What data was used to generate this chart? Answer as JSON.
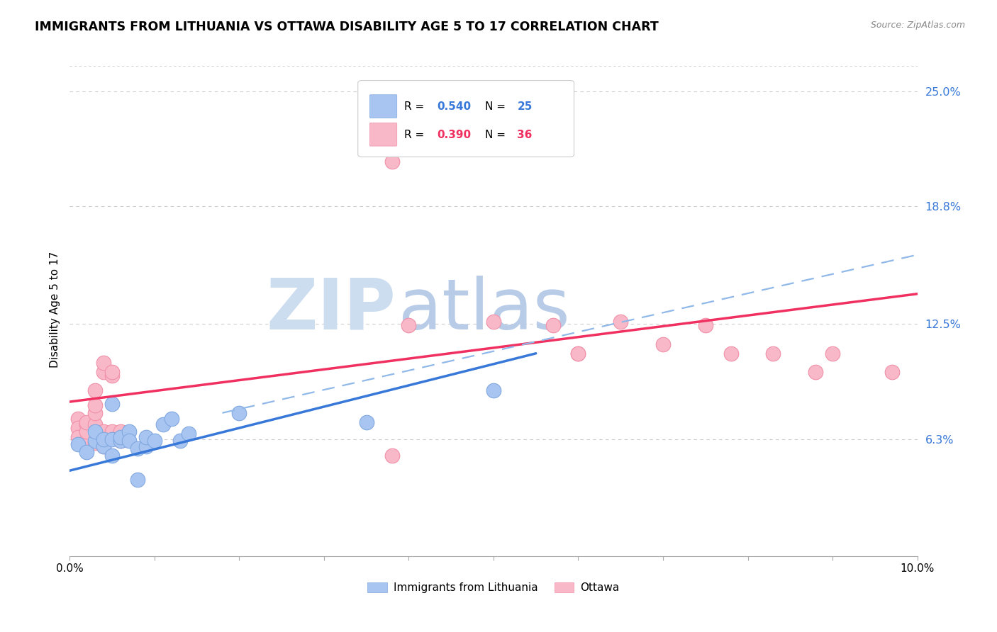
{
  "title": "IMMIGRANTS FROM LITHUANIA VS OTTAWA DISABILITY AGE 5 TO 17 CORRELATION CHART",
  "source": "Source: ZipAtlas.com",
  "ylabel": "Disability Age 5 to 17",
  "x_min": 0.0,
  "x_max": 0.1,
  "y_min": 0.0,
  "y_max": 0.265,
  "y_tick_labels_right": [
    "6.3%",
    "12.5%",
    "18.8%",
    "25.0%"
  ],
  "y_tick_vals_right": [
    0.063,
    0.125,
    0.188,
    0.25
  ],
  "gridline_y": [
    0.063,
    0.125,
    0.188,
    0.25
  ],
  "legend_r1": "0.540",
  "legend_n1": "25",
  "legend_r2": "0.390",
  "legend_n2": "36",
  "blue_color": "#a8c4f0",
  "pink_color": "#f8b8c8",
  "blue_line_color": "#3878d8",
  "pink_line_color": "#f03060",
  "blue_dashed_color": "#90b8e8",
  "background_color": "#ffffff",
  "blue_points": [
    [
      0.001,
      0.06
    ],
    [
      0.002,
      0.056
    ],
    [
      0.003,
      0.062
    ],
    [
      0.003,
      0.067
    ],
    [
      0.004,
      0.059
    ],
    [
      0.004,
      0.063
    ],
    [
      0.005,
      0.054
    ],
    [
      0.005,
      0.063
    ],
    [
      0.005,
      0.082
    ],
    [
      0.006,
      0.062
    ],
    [
      0.006,
      0.064
    ],
    [
      0.007,
      0.067
    ],
    [
      0.007,
      0.062
    ],
    [
      0.008,
      0.041
    ],
    [
      0.008,
      0.058
    ],
    [
      0.009,
      0.059
    ],
    [
      0.009,
      0.064
    ],
    [
      0.01,
      0.062
    ],
    [
      0.011,
      0.071
    ],
    [
      0.012,
      0.074
    ],
    [
      0.013,
      0.062
    ],
    [
      0.014,
      0.066
    ],
    [
      0.02,
      0.077
    ],
    [
      0.035,
      0.072
    ],
    [
      0.05,
      0.089
    ]
  ],
  "pink_points": [
    [
      0.001,
      0.074
    ],
    [
      0.001,
      0.069
    ],
    [
      0.001,
      0.064
    ],
    [
      0.002,
      0.071
    ],
    [
      0.002,
      0.062
    ],
    [
      0.002,
      0.067
    ],
    [
      0.002,
      0.072
    ],
    [
      0.003,
      0.061
    ],
    [
      0.003,
      0.071
    ],
    [
      0.003,
      0.077
    ],
    [
      0.003,
      0.081
    ],
    [
      0.003,
      0.089
    ],
    [
      0.004,
      0.059
    ],
    [
      0.004,
      0.067
    ],
    [
      0.004,
      0.099
    ],
    [
      0.004,
      0.104
    ],
    [
      0.005,
      0.097
    ],
    [
      0.005,
      0.099
    ],
    [
      0.005,
      0.067
    ],
    [
      0.006,
      0.062
    ],
    [
      0.006,
      0.067
    ],
    [
      0.038,
      0.054
    ],
    [
      0.038,
      0.212
    ],
    [
      0.04,
      0.124
    ],
    [
      0.05,
      0.126
    ],
    [
      0.057,
      0.124
    ],
    [
      0.06,
      0.109
    ],
    [
      0.065,
      0.126
    ],
    [
      0.07,
      0.114
    ],
    [
      0.075,
      0.124
    ],
    [
      0.078,
      0.109
    ],
    [
      0.083,
      0.109
    ],
    [
      0.088,
      0.099
    ],
    [
      0.06,
      0.109
    ],
    [
      0.09,
      0.109
    ],
    [
      0.097,
      0.099
    ]
  ],
  "blue_line": [
    [
      0.0,
      0.046
    ],
    [
      0.055,
      0.109
    ]
  ],
  "pink_line": [
    [
      0.0,
      0.083
    ],
    [
      0.1,
      0.141
    ]
  ],
  "blue_dash_line": [
    [
      0.018,
      0.077
    ],
    [
      0.1,
      0.162
    ]
  ]
}
